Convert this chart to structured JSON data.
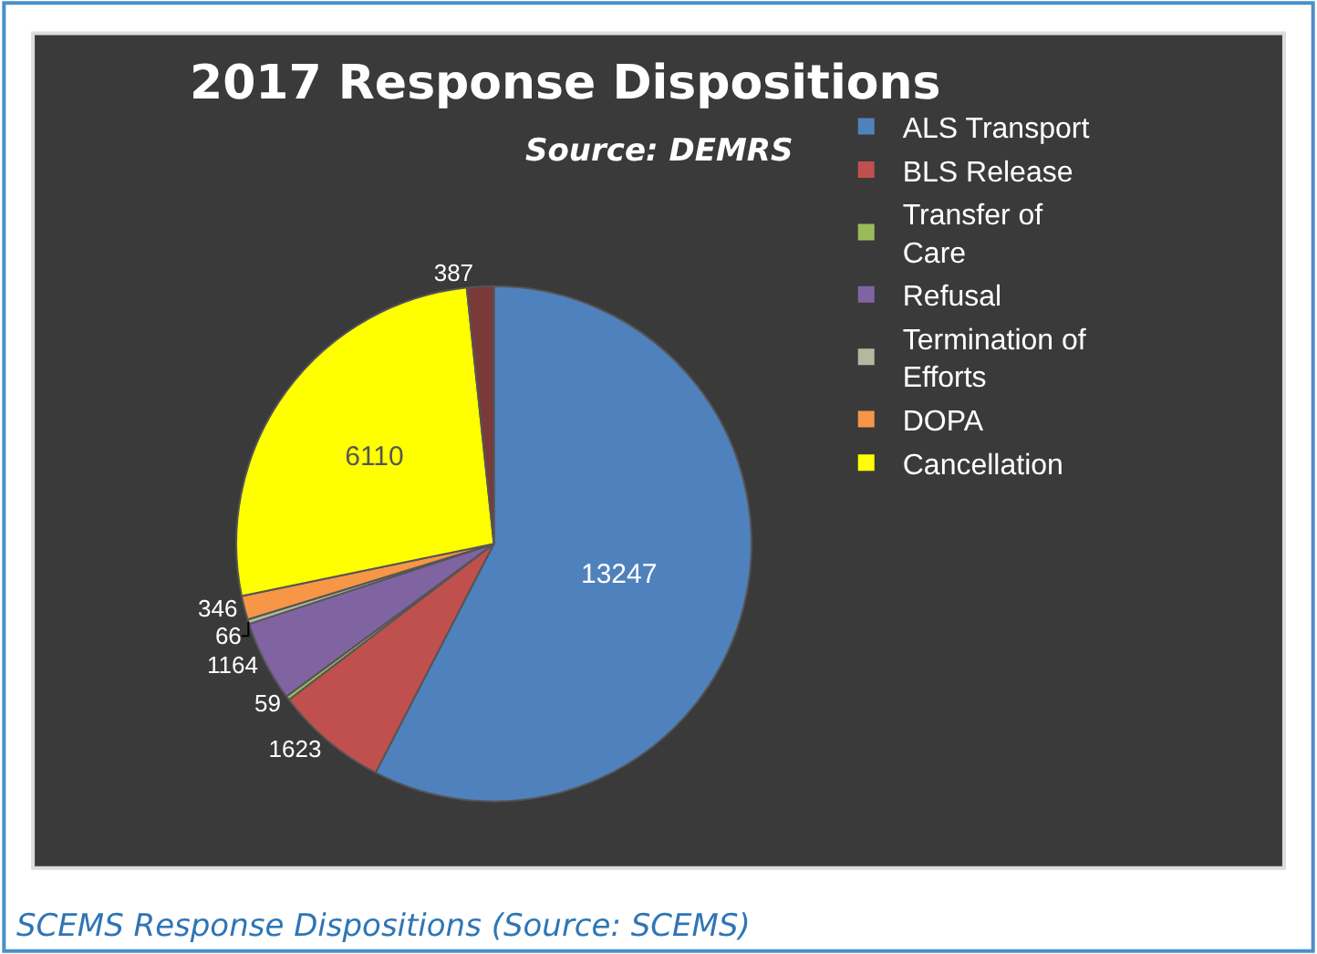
{
  "chart_data": {
    "type": "pie",
    "title": "2017 Response Dispositions",
    "subtitle": "Source: DEMRS",
    "categories": [
      "ALS Transport",
      "BLS Release",
      "Transfer of Care",
      "Refusal",
      "Termination of Efforts",
      "DOPA",
      "Cancellation",
      null
    ],
    "values": [
      13247,
      1623,
      59,
      1164,
      66,
      346,
      6110,
      387
    ],
    "colors": [
      "#4f81bd",
      "#c0504d",
      "#9bbb59",
      "#8064a2",
      "#b4b8a0",
      "#f79646",
      "#ffff00",
      "#7a3a3a"
    ],
    "data_labels": true,
    "legend": "top right",
    "annotations": [
      "SCEMS Response Dispositions (Source: SCEMS)"
    ]
  }
}
